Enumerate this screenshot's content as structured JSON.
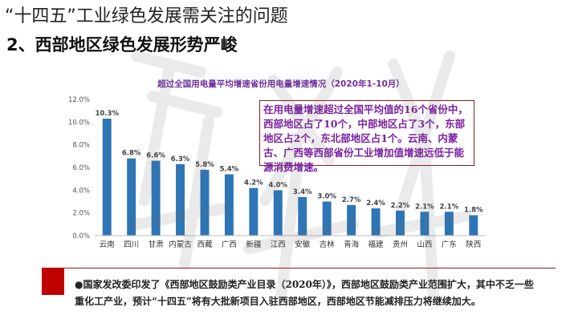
{
  "slide": {
    "title": "“十四五”工业绿色发展需关注的问题",
    "section_heading": "2、西部地区绿色发展形势严峻"
  },
  "callout": {
    "text": "在用电量增速超过全国平均值的16个省份中，西部地区占了10个，中部地区占了3个，东部地区占2个，东北部地区占1个。云南、内蒙古、广西等西部省份工业增加值增速远低于能源消费增速。"
  },
  "bottom_note": {
    "text": "●国家发改委印发了《西部地区鼓励类产业目录（2020年）》，西部地区鼓励类产业范围扩大，其中不乏一些重化工产业，预计“十四五”将有大批新项目入驻西部地区，西部地区节能减排压力将继续加大。"
  },
  "colors": {
    "bar": "#2E75B6",
    "chart_title": "#7030A0",
    "callout_text": "#7B1FA2",
    "accent_red": "#C00000"
  },
  "chart_data": {
    "type": "bar",
    "title": "超过全国用电量平均增速省份用电量增速情况（2020年1-10月）",
    "categories": [
      "云南",
      "四川",
      "甘肃",
      "内蒙古",
      "西藏",
      "广西",
      "新疆",
      "江西",
      "安徽",
      "吉林",
      "青海",
      "福建",
      "贵州",
      "山西",
      "广东",
      "陕西"
    ],
    "values": [
      10.3,
      6.8,
      6.6,
      6.3,
      5.8,
      5.4,
      4.2,
      4.0,
      3.4,
      3.0,
      2.7,
      2.4,
      2.2,
      2.1,
      2.1,
      1.8
    ],
    "value_labels": [
      "10.3%",
      "6.8%",
      "6.6%",
      "6.3%",
      "5.8%",
      "5.4%",
      "4.2%",
      "4.0%",
      "3.4%",
      "3.0%",
      "2.7%",
      "2.4%",
      "2.2%",
      "2.1%",
      "2.1%",
      "1.8%"
    ],
    "yticks": [
      "0.0%",
      "2.0%",
      "4.0%",
      "6.0%",
      "8.0%",
      "10.0%",
      "12.0%"
    ],
    "ylim": [
      0,
      12
    ],
    "grid": false,
    "legend": "none"
  }
}
